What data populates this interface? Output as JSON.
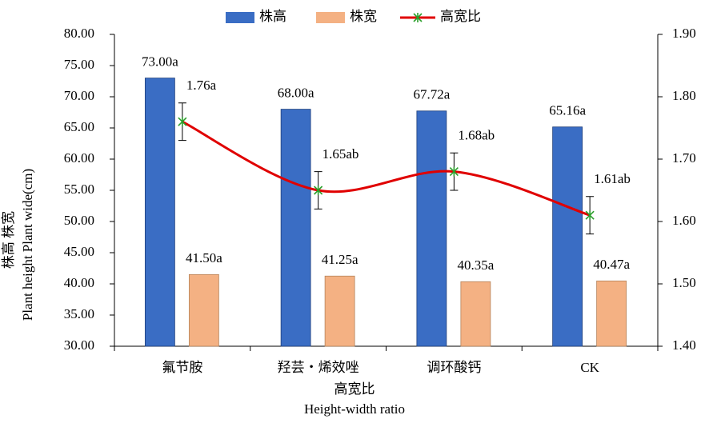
{
  "chart_data": {
    "type": "bar",
    "categories": [
      "氟节胺",
      "羟芸・烯效唑",
      "调环酸钙",
      "CK"
    ],
    "series": [
      {
        "name": "株高",
        "type": "bar",
        "color": "#3a6dc4",
        "values": [
          73.0,
          68.0,
          67.72,
          65.16
        ],
        "value_labels": [
          "73.00a",
          "68.00a",
          "67.72a",
          "65.16a"
        ]
      },
      {
        "name": "株宽",
        "type": "bar",
        "color": "#f4b183",
        "values": [
          41.5,
          41.25,
          40.35,
          40.47
        ],
        "value_labels": [
          "41.50a",
          "41.25a",
          "40.35a",
          "40.47a"
        ]
      },
      {
        "name": "高宽比",
        "type": "line",
        "axis": "y2",
        "color": "#e00000",
        "marker_color": "#2ca02c",
        "values": [
          1.76,
          1.65,
          1.68,
          1.61
        ],
        "errors": [
          0.03,
          0.03,
          0.03,
          0.03
        ],
        "value_labels": [
          "1.76a",
          "1.65ab",
          "1.68ab",
          "1.61ab"
        ]
      }
    ],
    "ylim": [
      30,
      80
    ],
    "yticks": [
      {
        "value": 30,
        "label": "30.00"
      },
      {
        "value": 35,
        "label": "35.00"
      },
      {
        "value": 40,
        "label": "40.00"
      },
      {
        "value": 45,
        "label": "45.00"
      },
      {
        "value": 50,
        "label": "50.00"
      },
      {
        "value": 55,
        "label": "55.00"
      },
      {
        "value": 60,
        "label": "60.00"
      },
      {
        "value": 65,
        "label": "65.00"
      },
      {
        "value": 70,
        "label": "70.00"
      },
      {
        "value": 75,
        "label": "75.00"
      },
      {
        "value": 80,
        "label": "80.00"
      }
    ],
    "y2lim": [
      1.4,
      1.9
    ],
    "y2ticks": [
      {
        "value": 1.4,
        "label": "1.40"
      },
      {
        "value": 1.5,
        "label": "1.50"
      },
      {
        "value": 1.6,
        "label": "1.60"
      },
      {
        "value": 1.7,
        "label": "1.70"
      },
      {
        "value": 1.8,
        "label": "1.80"
      },
      {
        "value": 1.9,
        "label": "1.90"
      }
    ],
    "x_label": [
      "高宽比",
      "Height-width ratio"
    ],
    "y_label": [
      "株高 株宽",
      "Plant height  Plant wide(cm)"
    ],
    "legend": "top",
    "grid": false
  }
}
